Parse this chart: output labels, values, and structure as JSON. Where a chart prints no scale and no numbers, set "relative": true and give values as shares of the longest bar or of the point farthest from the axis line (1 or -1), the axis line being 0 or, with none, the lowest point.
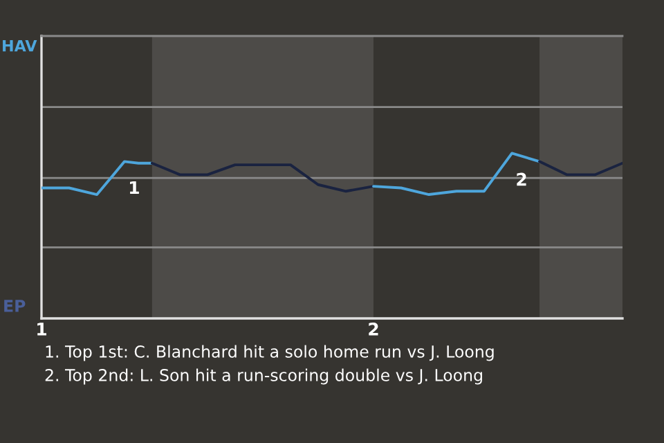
{
  "chart_data": {
    "type": "line",
    "relative": true,
    "series": [
      {
        "color": "#4ea6dc",
        "x": [
          1,
          1.083,
          1.167,
          1.25,
          1.292,
          1.333
        ],
        "values": [
          0.79,
          0.79,
          0.75,
          0.95,
          0.94,
          0.94
        ]
      },
      {
        "color": "#1a2340",
        "x": [
          1.333,
          1.417,
          1.5,
          1.583,
          1.75,
          1.833,
          1.917,
          2
        ],
        "values": [
          0.94,
          0.87,
          0.87,
          0.93,
          0.93,
          0.81,
          0.77,
          0.8
        ]
      },
      {
        "color": "#4ea6dc",
        "x": [
          2,
          2.083,
          2.167,
          2.25,
          2.333,
          2.417,
          2.5
        ],
        "values": [
          0.8,
          0.79,
          0.75,
          0.77,
          0.77,
          1,
          0.95
        ]
      },
      {
        "color": "#1a2340",
        "x": [
          2.5,
          2.583,
          2.667,
          2.75
        ],
        "values": [
          0.95,
          0.87,
          0.87,
          0.94
        ]
      }
    ],
    "xlim": [
      1,
      2.75
    ],
    "xticks": [
      1,
      2
    ],
    "ref_lines": [
      {
        "axis": "y",
        "value": 0.43,
        "color": "#8a8a8a"
      },
      {
        "axis": "y",
        "value": 0.85,
        "color": "#8a8a8a"
      },
      {
        "axis": "y",
        "value": 1.28,
        "color": "#8a8a8a"
      }
    ],
    "marker": "none",
    "line_style": "solid",
    "bands": [
      {
        "axis": "x",
        "from": 1.333,
        "to": 2,
        "color": "#4d4b48"
      },
      {
        "axis": "x",
        "from": 2.5,
        "to": 2.75,
        "color": "#4d4b48"
      }
    ],
    "annotations": [
      "HAV",
      "EP",
      {
        "text": "1",
        "x": 1.25,
        "y": 0.95
      },
      {
        "text": "2",
        "x": 2.417,
        "y": 1
      },
      "1. Top 1st: C. Blanchard hit a solo home run vs J. Loong",
      "2. Top 2nd: L. Son hit a run-scoring double vs J. Loong"
    ]
  }
}
